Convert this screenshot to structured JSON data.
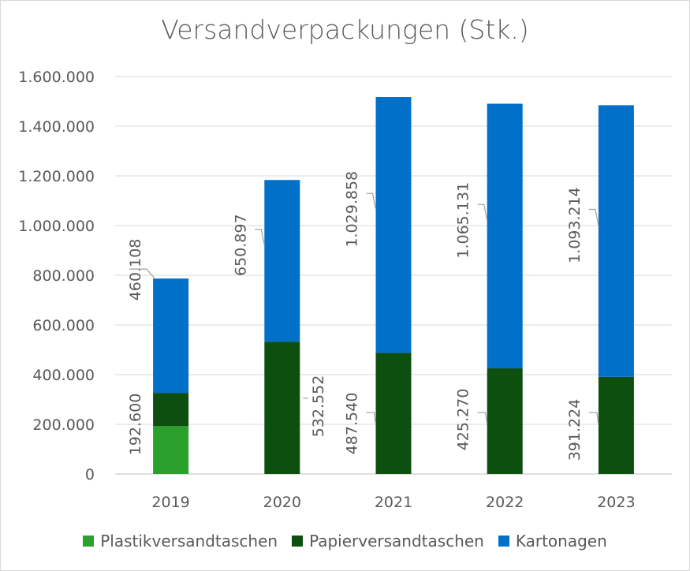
{
  "chart_data": {
    "type": "bar",
    "stacked": true,
    "title": "Versandverpackungen (Stk.)",
    "categories": [
      "2019",
      "2020",
      "2021",
      "2022",
      "2023"
    ],
    "ylim": [
      0,
      1600000
    ],
    "yticks": [
      0,
      200000,
      400000,
      600000,
      800000,
      1000000,
      1200000,
      1400000,
      1600000
    ],
    "ytick_labels": [
      "0",
      "200.000",
      "400.000",
      "600.000",
      "800.000",
      "1.000.000",
      "1.200.000",
      "1.400.000",
      "1.600.000"
    ],
    "grid": true,
    "legend_position": "bottom",
    "series": [
      {
        "name": "Plastikversandtaschen",
        "color": "#2ca02c",
        "values": [
          192600,
          0,
          0,
          0,
          0
        ],
        "labels": [
          "192.600",
          "-",
          "",
          "",
          ""
        ]
      },
      {
        "name": "Papierversandtaschen",
        "color": "#0d4f0f",
        "values": [
          134000,
          532552,
          487540,
          425270,
          391224
        ],
        "labels": [
          "",
          "532.552",
          "487.540",
          "425.270",
          "391.224"
        ]
      },
      {
        "name": "Kartonagen",
        "color": "#0070c8",
        "values": [
          460108,
          650897,
          1029858,
          1065131,
          1093214
        ],
        "labels": [
          "460.108",
          "650.897",
          "1.029.858",
          "1.065.131",
          "1.093.214"
        ]
      }
    ]
  }
}
